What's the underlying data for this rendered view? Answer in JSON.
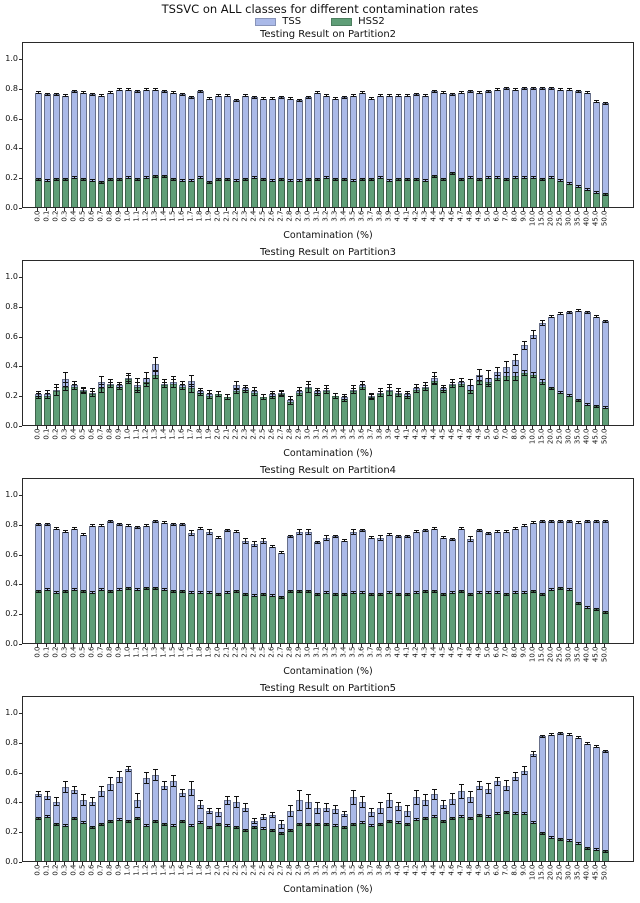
{
  "figure": {
    "title": "TSSVC on ALL classes for different contamination rates",
    "legend": [
      {
        "label": "TSS",
        "color": "#aab9e8"
      },
      {
        "label": "HSS2",
        "color": "#5f9e77"
      }
    ]
  },
  "chart_data": {
    "type": "bar",
    "note": "Four subplots; TSS and HSS2 bars overlaid from zero with black error bars",
    "xlabel": "Contamination (%)",
    "ylim": [
      0,
      1.11
    ],
    "yticks": [
      "0.0",
      "0.2",
      "0.4",
      "0.6",
      "0.8",
      "1.0"
    ],
    "grid": false,
    "legend_position": "top-center",
    "colors": {
      "tss": "#aab9e8",
      "hss2": "#5f9e77",
      "edge": "#1a1a1a",
      "error": "#111111"
    },
    "categories": [
      "0.0",
      "0.1",
      "0.2",
      "0.3",
      "0.4",
      "0.5",
      "0.6",
      "0.7",
      "0.8",
      "0.9",
      "1.0",
      "1.1",
      "1.2",
      "1.3",
      "1.4",
      "1.5",
      "1.6",
      "1.7",
      "1.8",
      "1.9",
      "2.0",
      "2.1",
      "2.2",
      "2.3",
      "2.4",
      "2.5",
      "2.6",
      "2.7",
      "2.8",
      "2.9",
      "3.0",
      "3.1",
      "3.2",
      "3.3",
      "3.4",
      "3.5",
      "3.6",
      "3.7",
      "3.8",
      "3.9",
      "4.0",
      "4.1",
      "4.2",
      "4.3",
      "4.4",
      "4.5",
      "4.6",
      "4.7",
      "4.8",
      "4.9",
      "5.0",
      "6.0",
      "7.0",
      "8.0",
      "9.0",
      "10.0",
      "15.0",
      "20.0",
      "25.0",
      "30.0",
      "35.0",
      "40.0",
      "45.0",
      "50.0"
    ],
    "subplots": [
      {
        "title": "Testing Result on Partition2",
        "series": [
          {
            "name": "TSS",
            "values": [
              0.78,
              0.77,
              0.77,
              0.76,
              0.79,
              0.78,
              0.77,
              0.76,
              0.78,
              0.8,
              0.8,
              0.79,
              0.8,
              0.8,
              0.79,
              0.78,
              0.77,
              0.75,
              0.79,
              0.74,
              0.76,
              0.76,
              0.73,
              0.76,
              0.75,
              0.74,
              0.74,
              0.75,
              0.74,
              0.73,
              0.75,
              0.78,
              0.76,
              0.74,
              0.75,
              0.76,
              0.78,
              0.74,
              0.76,
              0.76,
              0.76,
              0.76,
              0.77,
              0.76,
              0.79,
              0.78,
              0.77,
              0.78,
              0.79,
              0.78,
              0.79,
              0.8,
              0.81,
              0.8,
              0.81,
              0.81,
              0.81,
              0.81,
              0.8,
              0.8,
              0.79,
              0.78,
              0.72,
              0.71
            ],
            "errors": 0.01
          },
          {
            "name": "HSS2",
            "values": [
              0.2,
              0.19,
              0.2,
              0.2,
              0.21,
              0.2,
              0.19,
              0.18,
              0.2,
              0.2,
              0.21,
              0.2,
              0.21,
              0.22,
              0.22,
              0.2,
              0.19,
              0.19,
              0.21,
              0.18,
              0.2,
              0.2,
              0.19,
              0.2,
              0.21,
              0.2,
              0.19,
              0.2,
              0.19,
              0.19,
              0.2,
              0.2,
              0.21,
              0.2,
              0.2,
              0.19,
              0.2,
              0.2,
              0.21,
              0.19,
              0.2,
              0.2,
              0.2,
              0.19,
              0.22,
              0.2,
              0.24,
              0.2,
              0.21,
              0.2,
              0.21,
              0.21,
              0.2,
              0.21,
              0.21,
              0.21,
              0.2,
              0.21,
              0.19,
              0.17,
              0.15,
              0.13,
              0.11,
              0.1
            ],
            "errors": 0.01
          }
        ]
      },
      {
        "title": "Testing Result on Partition3",
        "series": [
          {
            "name": "TSS",
            "values": [
              0.22,
              0.22,
              0.25,
              0.32,
              0.28,
              0.25,
              0.23,
              0.3,
              0.29,
              0.28,
              0.33,
              0.28,
              0.33,
              0.42,
              0.29,
              0.3,
              0.28,
              0.31,
              0.24,
              0.22,
              0.22,
              0.2,
              0.28,
              0.26,
              0.24,
              0.2,
              0.22,
              0.23,
              0.18,
              0.24,
              0.27,
              0.24,
              0.25,
              0.21,
              0.2,
              0.25,
              0.28,
              0.21,
              0.23,
              0.25,
              0.23,
              0.22,
              0.26,
              0.27,
              0.33,
              0.26,
              0.29,
              0.3,
              0.28,
              0.35,
              0.33,
              0.37,
              0.4,
              0.45,
              0.55,
              0.62,
              0.7,
              0.74,
              0.76,
              0.77,
              0.78,
              0.77,
              0.74,
              0.71
            ],
            "errors": [
              0.02,
              0.03,
              0.04,
              0.05,
              0.03,
              0.02,
              0.03,
              0.04,
              0.03,
              0.02,
              0.03,
              0.05,
              0.04,
              0.05,
              0.03,
              0.04,
              0.03,
              0.04,
              0.02,
              0.03,
              0.02,
              0.02,
              0.03,
              0.02,
              0.03,
              0.02,
              0.02,
              0.02,
              0.03,
              0.03,
              0.04,
              0.02,
              0.03,
              0.02,
              0.02,
              0.03,
              0.03,
              0.02,
              0.03,
              0.04,
              0.03,
              0.02,
              0.03,
              0.03,
              0.04,
              0.02,
              0.03,
              0.03,
              0.04,
              0.04,
              0.05,
              0.03,
              0.04,
              0.04,
              0.03,
              0.03,
              0.02,
              0.01,
              0.01,
              0.01,
              0.01,
              0.01,
              0.01,
              0.01
            ]
          },
          {
            "name": "HSS2",
            "values": [
              0.21,
              0.21,
              0.24,
              0.27,
              0.27,
              0.24,
              0.22,
              0.26,
              0.28,
              0.27,
              0.32,
              0.27,
              0.3,
              0.35,
              0.28,
              0.29,
              0.27,
              0.26,
              0.23,
              0.21,
              0.22,
              0.2,
              0.24,
              0.25,
              0.23,
              0.2,
              0.21,
              0.22,
              0.17,
              0.23,
              0.26,
              0.23,
              0.24,
              0.21,
              0.19,
              0.24,
              0.27,
              0.2,
              0.22,
              0.24,
              0.22,
              0.21,
              0.25,
              0.26,
              0.31,
              0.25,
              0.28,
              0.29,
              0.25,
              0.31,
              0.3,
              0.33,
              0.34,
              0.34,
              0.36,
              0.35,
              0.3,
              0.26,
              0.23,
              0.21,
              0.18,
              0.15,
              0.14,
              0.13
            ],
            "errors": [
              0.02,
              0.02,
              0.03,
              0.03,
              0.02,
              0.02,
              0.02,
              0.03,
              0.02,
              0.02,
              0.03,
              0.03,
              0.03,
              0.03,
              0.02,
              0.03,
              0.02,
              0.03,
              0.02,
              0.02,
              0.02,
              0.02,
              0.02,
              0.02,
              0.02,
              0.02,
              0.02,
              0.02,
              0.02,
              0.02,
              0.03,
              0.02,
              0.02,
              0.02,
              0.02,
              0.02,
              0.02,
              0.02,
              0.02,
              0.03,
              0.02,
              0.02,
              0.02,
              0.02,
              0.03,
              0.02,
              0.02,
              0.02,
              0.03,
              0.03,
              0.03,
              0.02,
              0.03,
              0.03,
              0.02,
              0.02,
              0.02,
              0.01,
              0.01,
              0.01,
              0.01,
              0.01,
              0.01,
              0.01
            ]
          }
        ]
      },
      {
        "title": "Testing Result on Partition4",
        "series": [
          {
            "name": "TSS",
            "values": [
              0.81,
              0.81,
              0.78,
              0.76,
              0.78,
              0.74,
              0.8,
              0.8,
              0.83,
              0.81,
              0.8,
              0.79,
              0.8,
              0.83,
              0.82,
              0.81,
              0.81,
              0.75,
              0.78,
              0.76,
              0.72,
              0.77,
              0.76,
              0.7,
              0.68,
              0.7,
              0.66,
              0.62,
              0.73,
              0.76,
              0.76,
              0.69,
              0.72,
              0.73,
              0.7,
              0.76,
              0.77,
              0.72,
              0.72,
              0.74,
              0.73,
              0.73,
              0.76,
              0.77,
              0.78,
              0.72,
              0.71,
              0.78,
              0.71,
              0.77,
              0.75,
              0.76,
              0.76,
              0.78,
              0.8,
              0.82,
              0.83,
              0.83,
              0.83,
              0.83,
              0.82,
              0.83,
              0.83,
              0.83
            ],
            "errors": [
              0.01,
              0.01,
              0.01,
              0.01,
              0.01,
              0.01,
              0.01,
              0.01,
              0.01,
              0.01,
              0.01,
              0.01,
              0.01,
              0.01,
              0.01,
              0.01,
              0.01,
              0.02,
              0.01,
              0.02,
              0.01,
              0.01,
              0.01,
              0.02,
              0.02,
              0.02,
              0.01,
              0.01,
              0.01,
              0.02,
              0.02,
              0.01,
              0.02,
              0.01,
              0.01,
              0.02,
              0.01,
              0.01,
              0.02,
              0.01,
              0.01,
              0.01,
              0.01,
              0.01,
              0.01,
              0.01,
              0.01,
              0.01,
              0.02,
              0.01,
              0.01,
              0.01,
              0.01,
              0.01,
              0.01,
              0.01,
              0.01,
              0.01,
              0.01,
              0.01,
              0.01,
              0.01,
              0.01,
              0.01
            ]
          },
          {
            "name": "HSS2",
            "values": [
              0.36,
              0.37,
              0.35,
              0.36,
              0.37,
              0.36,
              0.35,
              0.37,
              0.36,
              0.37,
              0.38,
              0.37,
              0.38,
              0.38,
              0.37,
              0.36,
              0.36,
              0.35,
              0.35,
              0.35,
              0.34,
              0.35,
              0.36,
              0.34,
              0.33,
              0.34,
              0.33,
              0.32,
              0.36,
              0.36,
              0.36,
              0.34,
              0.35,
              0.34,
              0.34,
              0.35,
              0.35,
              0.34,
              0.34,
              0.35,
              0.34,
              0.34,
              0.35,
              0.36,
              0.36,
              0.34,
              0.35,
              0.36,
              0.34,
              0.35,
              0.35,
              0.35,
              0.34,
              0.35,
              0.35,
              0.36,
              0.34,
              0.37,
              0.38,
              0.37,
              0.28,
              0.25,
              0.24,
              0.22
            ],
            "errors": 0.01
          }
        ]
      },
      {
        "title": "Testing Result on Partition5",
        "series": [
          {
            "name": "TSS",
            "values": [
              0.46,
              0.45,
              0.41,
              0.51,
              0.49,
              0.42,
              0.41,
              0.48,
              0.53,
              0.58,
              0.63,
              0.42,
              0.57,
              0.59,
              0.52,
              0.55,
              0.47,
              0.5,
              0.39,
              0.35,
              0.34,
              0.42,
              0.41,
              0.37,
              0.28,
              0.31,
              0.32,
              0.26,
              0.35,
              0.42,
              0.41,
              0.37,
              0.37,
              0.36,
              0.33,
              0.44,
              0.41,
              0.34,
              0.37,
              0.42,
              0.38,
              0.35,
              0.44,
              0.42,
              0.46,
              0.39,
              0.43,
              0.48,
              0.44,
              0.52,
              0.5,
              0.55,
              0.52,
              0.58,
              0.62,
              0.73,
              0.85,
              0.86,
              0.87,
              0.86,
              0.84,
              0.8,
              0.78,
              0.75
            ],
            "errors": [
              0.02,
              0.03,
              0.03,
              0.04,
              0.03,
              0.04,
              0.03,
              0.04,
              0.05,
              0.04,
              0.02,
              0.05,
              0.04,
              0.04,
              0.03,
              0.04,
              0.03,
              0.05,
              0.03,
              0.02,
              0.03,
              0.03,
              0.04,
              0.03,
              0.02,
              0.02,
              0.02,
              0.03,
              0.04,
              0.07,
              0.05,
              0.04,
              0.03,
              0.03,
              0.02,
              0.05,
              0.04,
              0.03,
              0.04,
              0.05,
              0.03,
              0.04,
              0.05,
              0.04,
              0.04,
              0.03,
              0.04,
              0.05,
              0.04,
              0.03,
              0.04,
              0.03,
              0.04,
              0.03,
              0.03,
              0.02,
              0.01,
              0.01,
              0.01,
              0.01,
              0.01,
              0.01,
              0.01,
              0.01
            ]
          },
          {
            "name": "HSS2",
            "values": [
              0.3,
              0.31,
              0.26,
              0.25,
              0.3,
              0.27,
              0.24,
              0.26,
              0.28,
              0.29,
              0.28,
              0.3,
              0.25,
              0.28,
              0.26,
              0.25,
              0.28,
              0.25,
              0.27,
              0.24,
              0.26,
              0.25,
              0.24,
              0.22,
              0.24,
              0.23,
              0.22,
              0.2,
              0.22,
              0.26,
              0.26,
              0.26,
              0.26,
              0.25,
              0.24,
              0.26,
              0.27,
              0.25,
              0.26,
              0.28,
              0.27,
              0.26,
              0.29,
              0.3,
              0.31,
              0.28,
              0.3,
              0.31,
              0.3,
              0.32,
              0.31,
              0.33,
              0.34,
              0.33,
              0.33,
              0.27,
              0.2,
              0.17,
              0.16,
              0.15,
              0.13,
              0.1,
              0.09,
              0.08
            ],
            "errors": 0.01
          }
        ]
      }
    ]
  }
}
